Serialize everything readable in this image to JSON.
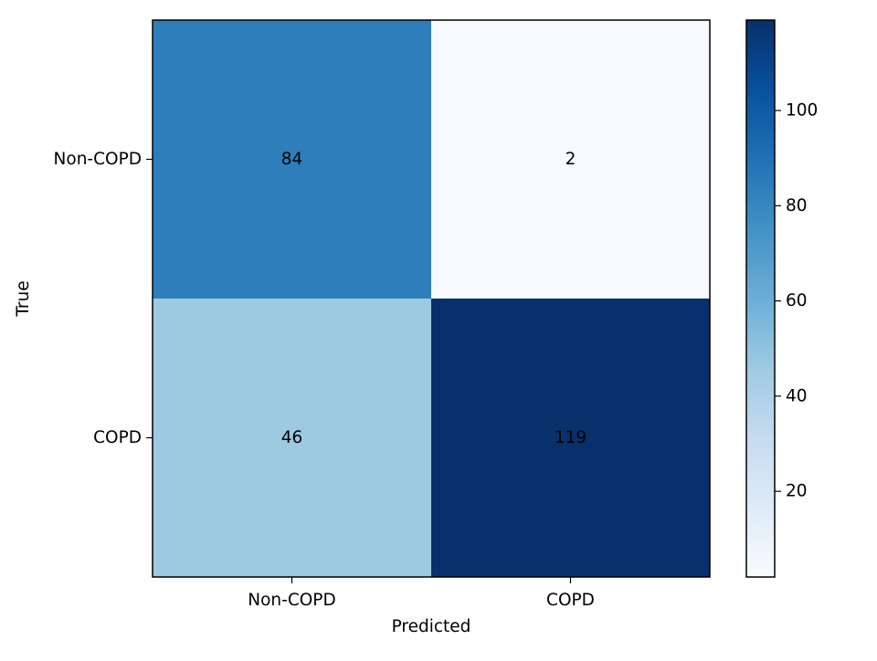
{
  "chart_data": {
    "type": "heatmap",
    "title": "",
    "xlabel": "Predicted",
    "ylabel": "True",
    "x_categories": [
      "Non-COPD",
      "COPD"
    ],
    "y_categories": [
      "Non-COPD",
      "COPD"
    ],
    "matrix": [
      [
        84,
        2
      ],
      [
        46,
        119
      ]
    ],
    "colormap": "Blues",
    "color_range": [
      2,
      119
    ],
    "colorbar": {
      "ticks": [
        20,
        40,
        60,
        80,
        100
      ],
      "tick_labels": [
        "20",
        "40",
        "60",
        "80",
        "100"
      ]
    },
    "grid": false
  }
}
